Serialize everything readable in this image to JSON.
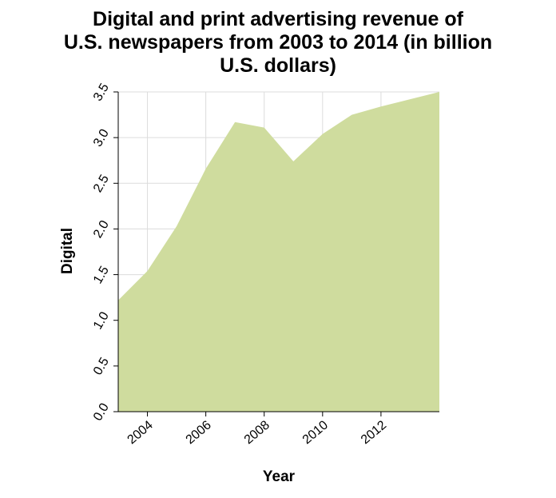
{
  "chart_data": {
    "type": "area",
    "title_lines": [
      "Digital and print advertising revenue of",
      "U.S. newspapers from 2003 to 2014 (in billion",
      "U.S. dollars)"
    ],
    "xlabel": "Year",
    "ylabel": "Digital",
    "xlim": [
      2003,
      2014
    ],
    "ylim": [
      0,
      3.5
    ],
    "x_ticks": [
      2004,
      2006,
      2008,
      2010,
      2012
    ],
    "y_ticks": [
      "0.0",
      "0.5",
      "1.0",
      "1.5",
      "2.0",
      "2.5",
      "3.0",
      "3.5"
    ],
    "grid": true,
    "series": [
      {
        "x": [
          2003,
          2004,
          2005,
          2006,
          2007,
          2008,
          2009,
          2010,
          2011,
          2012,
          2013,
          2014
        ],
        "values": [
          1.22,
          1.54,
          2.03,
          2.66,
          3.17,
          3.11,
          2.74,
          3.04,
          3.25,
          3.34,
          3.42,
          3.5
        ],
        "color": "#cfdc9e"
      }
    ]
  }
}
